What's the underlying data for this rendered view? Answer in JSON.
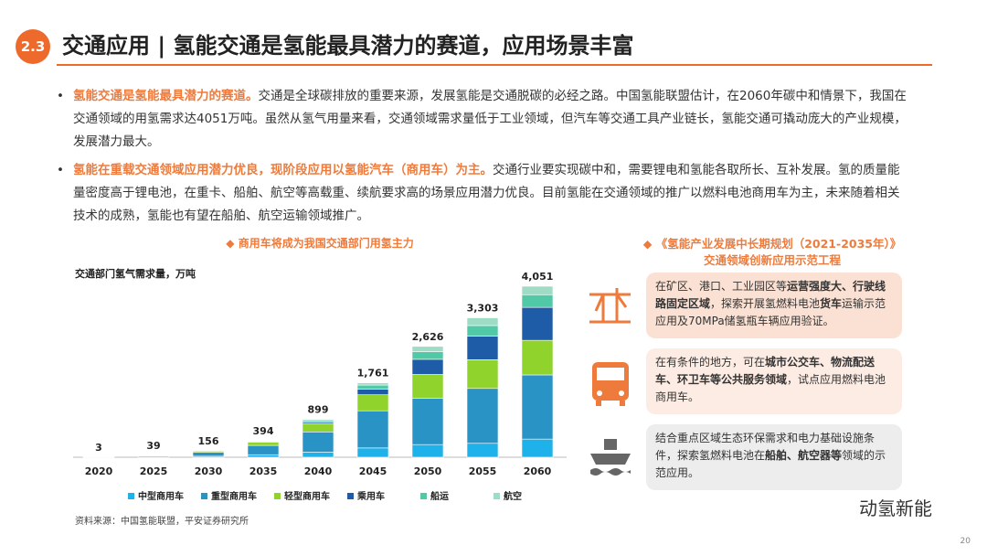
{
  "header": {
    "number": "2.3",
    "title": "交通应用 | 氢能交通是氢能最具潜力的赛道，应用场景丰富"
  },
  "bullets": [
    {
      "lead": "氢能交通是氢能最具潜力的赛道。",
      "text": "交通是全球碳排放的重要来源，发展氢能是交通脱碳的必经之路。中国氢能联盟估计，在2060年碳中和情景下，我国在交通领域的用氢需求达4051万吨。虽然从氢气用量来看，交通领域需求量低于工业领域，但汽车等交通工具产业链长，氢能交通可撬动庞大的产业规模，发展潜力最大。"
    },
    {
      "lead": "氢能在重载交通领域应用潜力优良，现阶段应用以氢能汽车（商用车）为主。",
      "text": "交通行业要实现碳中和，需要锂电和氢能各取所长、互补发展。氢的质量能量密度高于锂电池，在重卡、船舶、航空等高载重、续航要求高的场景应用潜力优良。目前氢能在交通领域的推广以燃料电池商用车为主，未来随着相关技术的成熟，氢能也有望在船舶、航空运输领域推广。"
    }
  ],
  "chart_data": {
    "type": "stacked_bar",
    "subtitle": "◆  商用车将成为我国交通部门用氢主力",
    "axis_title": "交通部门氢气需求量，万吨",
    "categories": [
      "2020",
      "2025",
      "2030",
      "2035",
      "2040",
      "2045",
      "2050",
      "2055",
      "2060"
    ],
    "series": [
      {
        "name": "中型商用车",
        "color": "#1fb2ea",
        "values": [
          1,
          8,
          25,
          60,
          120,
          220,
          300,
          330,
          430
        ]
      },
      {
        "name": "重型商用车",
        "color": "#2a93c6",
        "values": [
          1.5,
          22,
          90,
          220,
          480,
          880,
          1100,
          1300,
          1520
        ]
      },
      {
        "name": "轻型商用车",
        "color": "#8fd32c",
        "values": [
          0.5,
          7,
          30,
          80,
          200,
          380,
          560,
          680,
          820
        ]
      },
      {
        "name": "乘用车",
        "color": "#1f5ca8",
        "values": [
          0,
          0,
          3,
          10,
          30,
          130,
          360,
          560,
          780
        ]
      },
      {
        "name": "船运",
        "color": "#52c9a6",
        "values": [
          0,
          1,
          5,
          14,
          40,
          100,
          180,
          250,
          300
        ]
      },
      {
        "name": "航空",
        "color": "#9fdcc6",
        "values": [
          0,
          1,
          3,
          10,
          29,
          51,
          126,
          183,
          201
        ]
      }
    ],
    "totals": [
      3,
      39,
      156,
      394,
      899,
      1761,
      2626,
      3303,
      4051
    ],
    "total_labels": [
      "3",
      "39",
      "156",
      "394",
      "899",
      "1,761",
      "2,626",
      "3,303",
      "4,051"
    ]
  },
  "panel": {
    "title": "◆  《氢能产业发展中长期规划（2021-2035年）》交通领域创新应用示范工程",
    "items": [
      {
        "color": "#fbe1d3",
        "runs": [
          {
            "text": "在矿区、港口、工业园区等",
            "bold": false
          },
          {
            "text": "运营强度大、行驶线路固定区域",
            "bold": true
          },
          {
            "text": "，探索开展氢燃料电池",
            "bold": false
          },
          {
            "text": "货车",
            "bold": true
          },
          {
            "text": "运输示范应用及70MPa储氢瓶车辆应用验证。",
            "bold": false
          }
        ]
      },
      {
        "color": "#fdece3",
        "runs": [
          {
            "text": "在有条件的地方，可在",
            "bold": false
          },
          {
            "text": "城市公交车、物流配送车、环卫车等公共服务领域",
            "bold": true
          },
          {
            "text": "，试点应用燃料电池商用车。",
            "bold": false
          }
        ]
      },
      {
        "color": "#ededed",
        "runs": [
          {
            "text": "结合重点区域生态环保需求和电力基础设施条件，探索氢燃料电池在",
            "bold": false
          },
          {
            "text": "船舶、航空器等",
            "bold": true
          },
          {
            "text": "领域的示范应用。",
            "bold": false
          }
        ]
      }
    ]
  },
  "source": "资料来源：中国氢能联盟，平安证券研究所",
  "watermark": "动氢新能",
  "page_number": "20"
}
